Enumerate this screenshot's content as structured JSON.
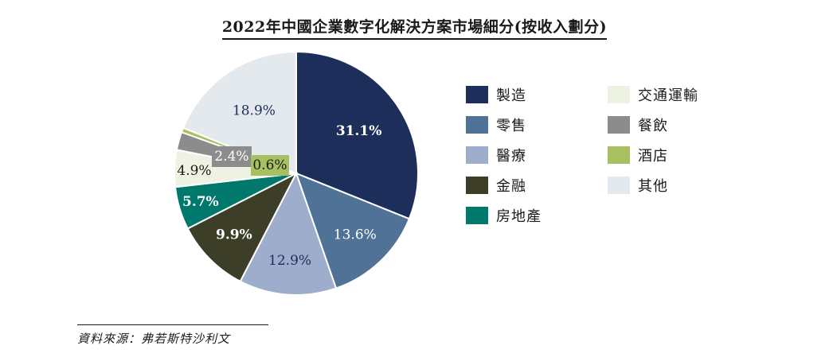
{
  "title": "2022年中國企業數字化解決方案市場細分(按收入劃分)",
  "source": "資料來源：弗若斯特沙利文",
  "chart_data": {
    "type": "pie",
    "title": "2022年中國企業數字化解決方案市場細分(按收入劃分)",
    "slices": [
      {
        "name": "製造",
        "value": 31.1,
        "label": "31.1%",
        "color": "#1d2e5a"
      },
      {
        "name": "零售",
        "value": 13.6,
        "label": "13.6%",
        "color": "#4f7296"
      },
      {
        "name": "醫療",
        "value": 12.9,
        "label": "12.9%",
        "color": "#9eadcb"
      },
      {
        "name": "金融",
        "value": 9.9,
        "label": "9.9%",
        "color": "#3d3e27"
      },
      {
        "name": "房地產",
        "value": 5.7,
        "label": "5.7%",
        "color": "#00786b"
      },
      {
        "name": "交通運輸",
        "value": 4.9,
        "label": "4.9%",
        "color": "#eef2e2"
      },
      {
        "name": "餐飲",
        "value": 2.4,
        "label": "2.4%",
        "color": "#8c8c8d"
      },
      {
        "name": "酒店",
        "value": 0.6,
        "label": "0.6%",
        "color": "#a8c060"
      },
      {
        "name": "其他",
        "value": 18.9,
        "label": "18.9%",
        "color": "#e4e9ee"
      }
    ],
    "legend_position": "right"
  }
}
